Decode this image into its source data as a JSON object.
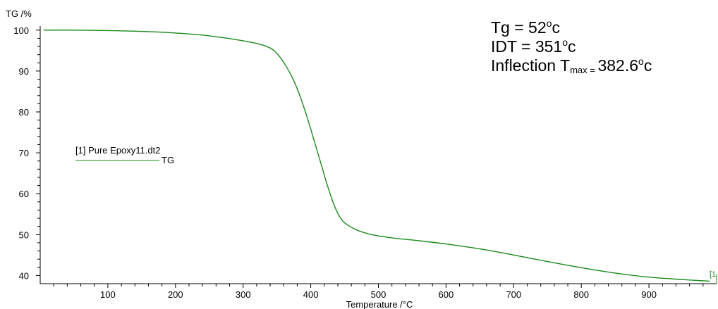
{
  "chart_data": {
    "type": "line",
    "ylabel": "TG /%",
    "xlabel": "Temperature /°C",
    "xlim": [
      0,
      1000
    ],
    "ylim": [
      38,
      101
    ],
    "x_ticks": [
      100,
      200,
      300,
      400,
      500,
      600,
      700,
      800,
      900
    ],
    "y_ticks": [
      40,
      50,
      60,
      70,
      80,
      90,
      100
    ],
    "grid": false,
    "legend": {
      "file": "[1] Pure Epoxy11.dt2",
      "position": "left-middle"
    },
    "series": [
      {
        "name": "TG",
        "color": "#1a8a1a",
        "x": [
          5,
          50,
          100,
          150,
          200,
          250,
          300,
          330,
          345,
          355,
          365,
          375,
          385,
          395,
          405,
          415,
          425,
          435,
          445,
          455,
          470,
          490,
          520,
          560,
          600,
          650,
          700,
          750,
          800,
          850,
          900,
          950,
          990
        ],
        "y": [
          100,
          100,
          99.9,
          99.7,
          99.3,
          98.6,
          97.4,
          96.3,
          95.1,
          93.3,
          90.8,
          87.6,
          83.5,
          78.5,
          73.0,
          67.4,
          61.8,
          57.0,
          53.8,
          52.3,
          51.0,
          50.0,
          49.2,
          48.5,
          47.7,
          46.5,
          45.0,
          43.4,
          41.9,
          40.6,
          39.6,
          39.0,
          38.6
        ]
      }
    ],
    "end_marker": "[1"
  },
  "annotations": {
    "tg": {
      "prefix": "Tg = 52",
      "sup": "o",
      "suffix": "c"
    },
    "idt": {
      "prefix": "IDT = 351",
      "sup": "o",
      "suffix": "c"
    },
    "inflection": {
      "prefix": "Inflection T",
      "sub": "max = ",
      "value": " 382.6",
      "sup": "o",
      "suffix": "c"
    }
  }
}
